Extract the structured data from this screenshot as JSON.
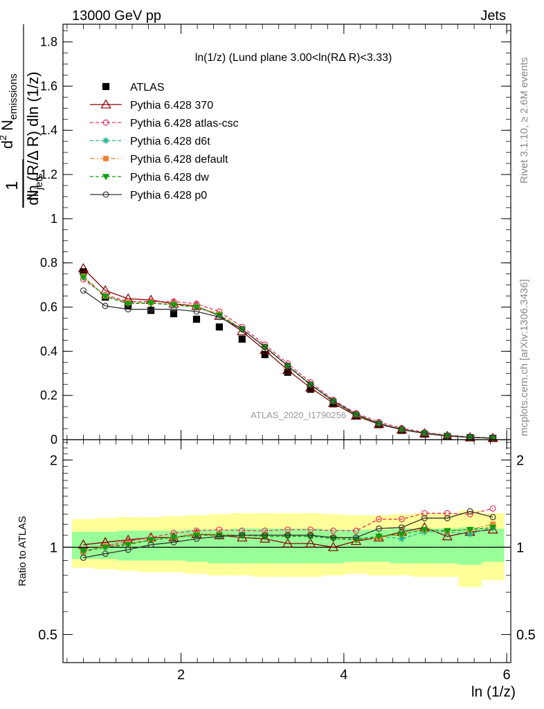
{
  "header": {
    "left": "13000 GeV pp",
    "right": "Jets"
  },
  "side": {
    "rivet": "Rivet 3.1.10, ≥ 2.6M events",
    "mcplots": "mcplots.cern.ch [arXiv:1306.3436]"
  },
  "watermark": "ATLAS_2020_I1790256",
  "chart_data": [
    {
      "type": "line",
      "title": "ln(1/z) (Lund plane 3.00<ln(RΔ R)<3.33)",
      "ylabel": "1/N_jets d²N_emissions / dln(R/ΔR) dln(1/z)",
      "ylabel_parts": {
        "one": "1",
        "njets": "N",
        "njets_sub": "jets",
        "num": "d",
        "num_sup": "2",
        "num_n": " N",
        "num_sub": "emissions",
        "den": "dln (R/Δ R) dln (1/z)"
      },
      "ylim": [
        0,
        1.88
      ],
      "yticks": [
        0,
        0.2,
        0.4,
        0.6,
        0.8,
        1,
        1.2,
        1.4,
        1.6,
        1.8
      ],
      "ytick_labels": [
        "0",
        "0.2",
        "0.4",
        "0.6",
        "0.8",
        "1",
        "1.2",
        "1.4",
        "1.6",
        "1.8"
      ],
      "xlim": [
        0.55,
        6.05
      ],
      "x": [
        0.8,
        1.07,
        1.35,
        1.63,
        1.91,
        2.19,
        2.47,
        2.75,
        3.03,
        3.31,
        3.59,
        3.87,
        4.15,
        4.43,
        4.71,
        4.99,
        5.27,
        5.55,
        5.83
      ],
      "legend_position": "top-left",
      "series": [
        {
          "name": "ATLAS",
          "color": "#000000",
          "marker": "square",
          "line": "none",
          "values": [
            0.76,
            0.645,
            0.605,
            0.585,
            0.57,
            0.545,
            0.51,
            0.455,
            0.385,
            0.305,
            0.228,
            0.162,
            0.107,
            0.068,
            0.042,
            0.025,
            0.015,
            0.009,
            0.006
          ]
        },
        {
          "name": "Pythia 6.428 370",
          "color": "#800000",
          "marker": "open-triangle",
          "line": "solid",
          "values": [
            0.775,
            0.675,
            0.638,
            0.632,
            0.615,
            0.605,
            0.56,
            0.49,
            0.405,
            0.315,
            0.235,
            0.165,
            0.108,
            0.07,
            0.045,
            0.028,
            0.016,
            0.01,
            0.007
          ]
        },
        {
          "name": "Pythia 6.428 atlas-csc",
          "color": "#e8305a",
          "marker": "open-circle",
          "line": "dashed",
          "values": [
            0.725,
            0.655,
            0.625,
            0.625,
            0.625,
            0.615,
            0.58,
            0.51,
            0.43,
            0.345,
            0.26,
            0.18,
            0.12,
            0.08,
            0.052,
            0.033,
            0.02,
            0.012,
            0.008
          ]
        },
        {
          "name": "Pythia 6.428 d6t",
          "color": "#20b090",
          "marker": "star",
          "line": "dashed",
          "values": [
            0.735,
            0.65,
            0.618,
            0.618,
            0.61,
            0.6,
            0.565,
            0.5,
            0.42,
            0.335,
            0.25,
            0.175,
            0.112,
            0.073,
            0.046,
            0.029,
            0.018,
            0.01,
            0.007
          ]
        },
        {
          "name": "Pythia 6.428 default",
          "color": "#f08030",
          "marker": "filled-square",
          "line": "dashdot",
          "values": [
            0.74,
            0.65,
            0.62,
            0.62,
            0.612,
            0.602,
            0.568,
            0.5,
            0.42,
            0.335,
            0.25,
            0.175,
            0.113,
            0.073,
            0.047,
            0.029,
            0.018,
            0.01,
            0.007
          ]
        },
        {
          "name": "Pythia 6.428 dw",
          "color": "#10a010",
          "marker": "filled-triangle-down",
          "line": "dashed",
          "values": [
            0.735,
            0.648,
            0.615,
            0.618,
            0.61,
            0.6,
            0.563,
            0.5,
            0.418,
            0.333,
            0.248,
            0.173,
            0.112,
            0.072,
            0.046,
            0.029,
            0.017,
            0.01,
            0.007
          ]
        },
        {
          "name": "Pythia 6.428 p0",
          "color": "#333333",
          "marker": "open-circle",
          "line": "solid",
          "values": [
            0.675,
            0.605,
            0.59,
            0.59,
            0.59,
            0.58,
            0.555,
            0.5,
            0.42,
            0.335,
            0.25,
            0.175,
            0.115,
            0.073,
            0.047,
            0.03,
            0.018,
            0.011,
            0.007
          ]
        }
      ]
    },
    {
      "type": "line",
      "ylabel": "Ratio to ATLAS",
      "xlabel": "ln (1/z)",
      "ylim": [
        0.4,
        2.35
      ],
      "yticks": [
        0.5,
        1,
        2
      ],
      "ytick_labels": [
        "0.5",
        "1",
        "2"
      ],
      "right_tick_labels": [
        "0.5",
        "1",
        "2"
      ],
      "xticks": [
        2,
        4,
        6
      ],
      "xtick_labels": [
        "2",
        "4",
        "6"
      ],
      "bands": {
        "x_edges": [
          0.66,
          0.94,
          1.21,
          1.49,
          1.77,
          2.05,
          2.33,
          2.61,
          2.89,
          3.17,
          3.45,
          3.73,
          4.01,
          4.29,
          4.57,
          4.85,
          5.13,
          5.41,
          5.69,
          5.97
        ],
        "yellow_lo": [
          0.85,
          0.84,
          0.83,
          0.82,
          0.82,
          0.81,
          0.8,
          0.8,
          0.79,
          0.79,
          0.79,
          0.8,
          0.81,
          0.8,
          0.8,
          0.79,
          0.79,
          0.73,
          0.77
        ],
        "yellow_hi": [
          1.25,
          1.26,
          1.27,
          1.27,
          1.28,
          1.29,
          1.3,
          1.31,
          1.31,
          1.31,
          1.31,
          1.3,
          1.29,
          1.29,
          1.3,
          1.31,
          1.31,
          1.34,
          1.31
        ],
        "green_lo": [
          0.91,
          0.91,
          0.9,
          0.9,
          0.9,
          0.89,
          0.88,
          0.88,
          0.88,
          0.88,
          0.88,
          0.88,
          0.89,
          0.89,
          0.88,
          0.88,
          0.88,
          0.87,
          0.89
        ],
        "green_hi": [
          1.13,
          1.13,
          1.14,
          1.14,
          1.14,
          1.15,
          1.15,
          1.16,
          1.16,
          1.16,
          1.16,
          1.15,
          1.15,
          1.15,
          1.16,
          1.16,
          1.16,
          1.17,
          1.16
        ],
        "yellow_color": "#ffff99",
        "green_color": "#99ff99"
      },
      "x": [
        0.8,
        1.07,
        1.35,
        1.63,
        1.91,
        2.19,
        2.47,
        2.75,
        3.03,
        3.31,
        3.59,
        3.87,
        4.15,
        4.43,
        4.71,
        4.99,
        5.27,
        5.55,
        5.83
      ],
      "series": [
        {
          "name": "Pythia 6.428 370",
          "color": "#800000",
          "marker": "open-triangle",
          "line": "solid",
          "values": [
            1.02,
            1.04,
            1.06,
            1.08,
            1.08,
            1.11,
            1.1,
            1.08,
            1.07,
            1.03,
            1.03,
            1.0,
            1.05,
            1.08,
            1.13,
            1.17,
            1.09,
            1.13,
            1.15
          ]
        },
        {
          "name": "Pythia 6.428 atlas-csc",
          "color": "#e8305a",
          "marker": "open-circle",
          "line": "dashed",
          "values": [
            0.96,
            1.01,
            1.05,
            1.08,
            1.12,
            1.14,
            1.15,
            1.14,
            1.14,
            1.15,
            1.15,
            1.14,
            1.14,
            1.25,
            1.25,
            1.31,
            1.31,
            1.3,
            1.36
          ]
        },
        {
          "name": "Pythia 6.428 d6t",
          "color": "#20b090",
          "marker": "star",
          "line": "dashed",
          "values": [
            0.97,
            1.0,
            1.03,
            1.06,
            1.08,
            1.1,
            1.1,
            1.1,
            1.1,
            1.1,
            1.09,
            1.08,
            1.07,
            1.09,
            1.07,
            1.13,
            1.13,
            1.11,
            1.17
          ]
        },
        {
          "name": "Pythia 6.428 default",
          "color": "#f08030",
          "marker": "filled-square",
          "line": "dashdot",
          "values": [
            0.97,
            1.01,
            1.03,
            1.06,
            1.08,
            1.11,
            1.11,
            1.1,
            1.1,
            1.1,
            1.1,
            1.08,
            1.06,
            1.08,
            1.11,
            1.15,
            1.14,
            1.15,
            1.2
          ]
        },
        {
          "name": "Pythia 6.428 dw",
          "color": "#10a010",
          "marker": "filled-triangle-down",
          "line": "dashed",
          "values": [
            0.97,
            1.0,
            1.02,
            1.06,
            1.08,
            1.1,
            1.1,
            1.1,
            1.09,
            1.09,
            1.09,
            1.07,
            1.06,
            1.09,
            1.11,
            1.15,
            1.14,
            1.15,
            1.17
          ]
        },
        {
          "name": "Pythia 6.428 p0",
          "color": "#333333",
          "marker": "open-circle",
          "line": "solid",
          "values": [
            0.92,
            0.95,
            0.98,
            1.02,
            1.04,
            1.07,
            1.09,
            1.1,
            1.1,
            1.1,
            1.1,
            1.08,
            1.08,
            1.16,
            1.17,
            1.26,
            1.26,
            1.33,
            1.27
          ]
        }
      ]
    }
  ]
}
